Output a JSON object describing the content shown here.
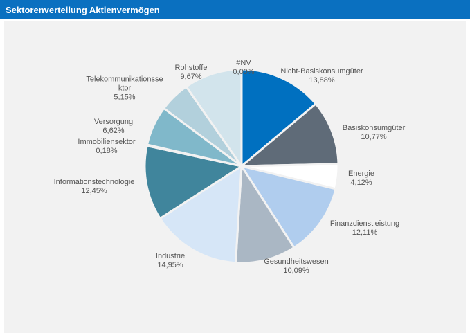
{
  "chart_data": {
    "type": "pie",
    "title": "Sektorenverteilung Aktienvermögen",
    "categories": [
      "Nicht-Basiskonsumgüter",
      "Basiskonsumgüter",
      "Energie",
      "Finanzdienstleistung",
      "Gesundheitswesen",
      "Industrie",
      "Informationstechnologie",
      "Immobiliensektor",
      "Versorgung",
      "Telekommunikationssektor",
      "Rohstoffe",
      "#NV"
    ],
    "values": [
      13.88,
      10.77,
      4.12,
      12.11,
      10.09,
      14.95,
      12.45,
      0.18,
      6.62,
      5.15,
      9.67,
      0.0
    ],
    "value_labels": [
      "13,88%",
      "10,77%",
      "4,12%",
      "12,11%",
      "10,09%",
      "14,95%",
      "12,45%",
      "0,18%",
      "6,62%",
      "5,15%",
      "9,67%",
      "0,00%"
    ],
    "colors": [
      "#0070c0",
      "#5f6b78",
      "#ffffff",
      "#b0cdee",
      "#aab7c4",
      "#d6e6f7",
      "#40859c",
      "#6f9fb8",
      "#80b8ca",
      "#b2d0dc",
      "#d2e4ec",
      "#c8d8e0"
    ]
  }
}
